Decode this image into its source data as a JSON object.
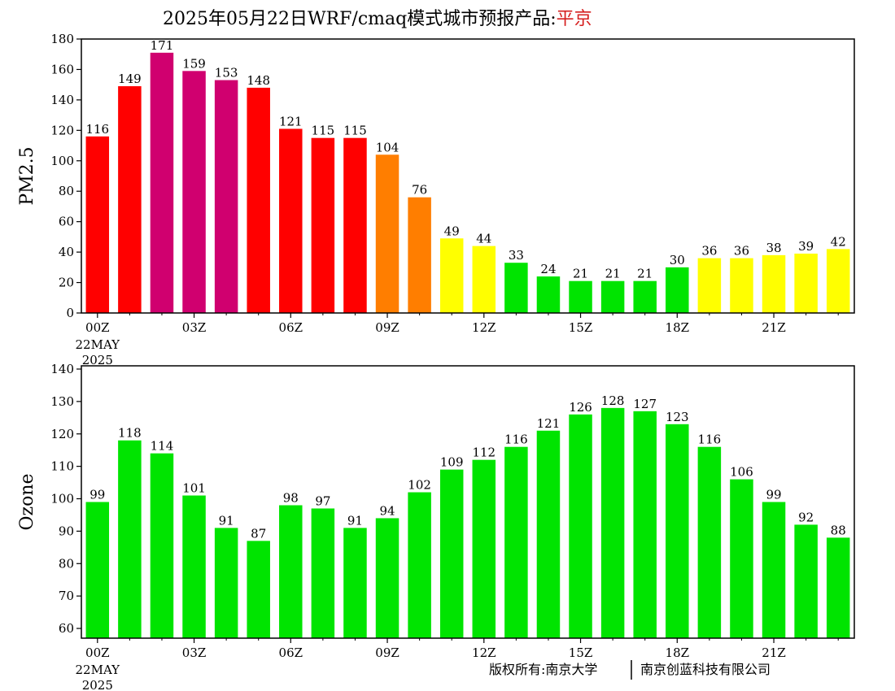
{
  "title": {
    "main": "2025年05月22日WRF/cmaq模式城市预报产品:",
    "city": "平京",
    "city_color": "#d62020"
  },
  "footer": {
    "left": "版权所有:南京大学",
    "right": "南京创蓝科技有限公司"
  },
  "colors": {
    "green": "#00e400",
    "yellow": "#ffff00",
    "orange": "#ff7e00",
    "red": "#ff0000",
    "purple": "#d0006f"
  },
  "chart_data": [
    {
      "type": "bar",
      "id": "pm25",
      "ylabel": "PM2.5",
      "ylim": [
        0,
        180
      ],
      "yticks": [
        0,
        20,
        40,
        60,
        80,
        100,
        120,
        140,
        160,
        180
      ],
      "xticks": [
        "00Z",
        "03Z",
        "06Z",
        "09Z",
        "12Z",
        "15Z",
        "18Z",
        "21Z"
      ],
      "date_label": [
        "22MAY",
        "2025"
      ],
      "values": [
        116,
        149,
        171,
        159,
        153,
        148,
        121,
        115,
        115,
        104,
        76,
        49,
        44,
        33,
        24,
        21,
        21,
        21,
        30,
        36,
        36,
        38,
        39,
        42
      ],
      "bar_colors": [
        "red",
        "red",
        "purple",
        "purple",
        "purple",
        "red",
        "red",
        "red",
        "red",
        "orange",
        "orange",
        "yellow",
        "yellow",
        "green",
        "green",
        "green",
        "green",
        "green",
        "green",
        "yellow",
        "yellow",
        "yellow",
        "yellow",
        "yellow"
      ]
    },
    {
      "type": "bar",
      "id": "ozone",
      "ylabel": "Ozone",
      "ylim": [
        57,
        141
      ],
      "yticks": [
        60,
        70,
        80,
        90,
        100,
        110,
        120,
        130,
        140
      ],
      "xticks": [
        "00Z",
        "03Z",
        "06Z",
        "09Z",
        "12Z",
        "15Z",
        "18Z",
        "21Z"
      ],
      "date_label": [
        "22MAY",
        "2025"
      ],
      "values": [
        99,
        118,
        114,
        101,
        91,
        87,
        98,
        97,
        91,
        94,
        102,
        109,
        112,
        116,
        121,
        126,
        128,
        127,
        123,
        116,
        106,
        99,
        92,
        88
      ],
      "bar_colors": [
        "green",
        "green",
        "green",
        "green",
        "green",
        "green",
        "green",
        "green",
        "green",
        "green",
        "green",
        "green",
        "green",
        "green",
        "green",
        "green",
        "green",
        "green",
        "green",
        "green",
        "green",
        "green",
        "green",
        "green"
      ]
    }
  ]
}
